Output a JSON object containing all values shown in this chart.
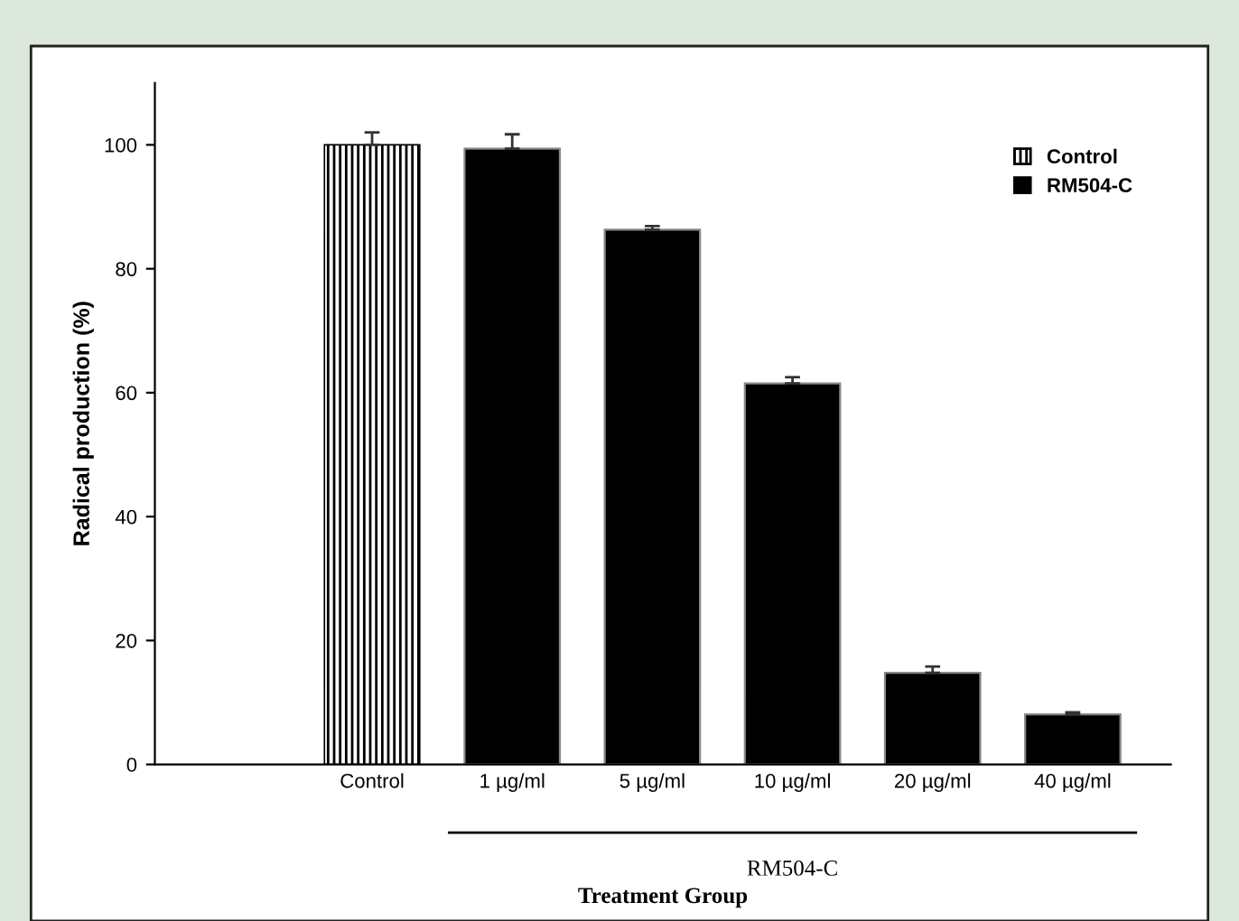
{
  "chart_data": {
    "type": "bar",
    "xlabel": "Treatment Group",
    "ylabel": "Radical production (%)",
    "categories": [
      null,
      "Control",
      "1 µg/ml",
      "5 µg/ml",
      "10 µg/ml",
      "20 µg/ml",
      "40 µg/ml"
    ],
    "series": [
      {
        "name": "Control",
        "color": "#000000",
        "values": [
          null,
          100,
          null,
          null,
          null,
          null,
          null
        ],
        "errors": [
          null,
          2,
          null,
          null,
          null,
          null,
          null
        ]
      },
      {
        "name": "RM504-C",
        "color": "#000000",
        "values": [
          null,
          null,
          99.4,
          86.3,
          61.5,
          14.8,
          8.1
        ],
        "errors": [
          null,
          null,
          2.3,
          0.6,
          1,
          1,
          0.3
        ]
      }
    ],
    "annotations": [
      "RM504-C"
    ],
    "ylim": [
      0,
      110
    ],
    "yticks": [
      0,
      20,
      40,
      60,
      80,
      100
    ],
    "grid": false,
    "legend": "top right"
  }
}
